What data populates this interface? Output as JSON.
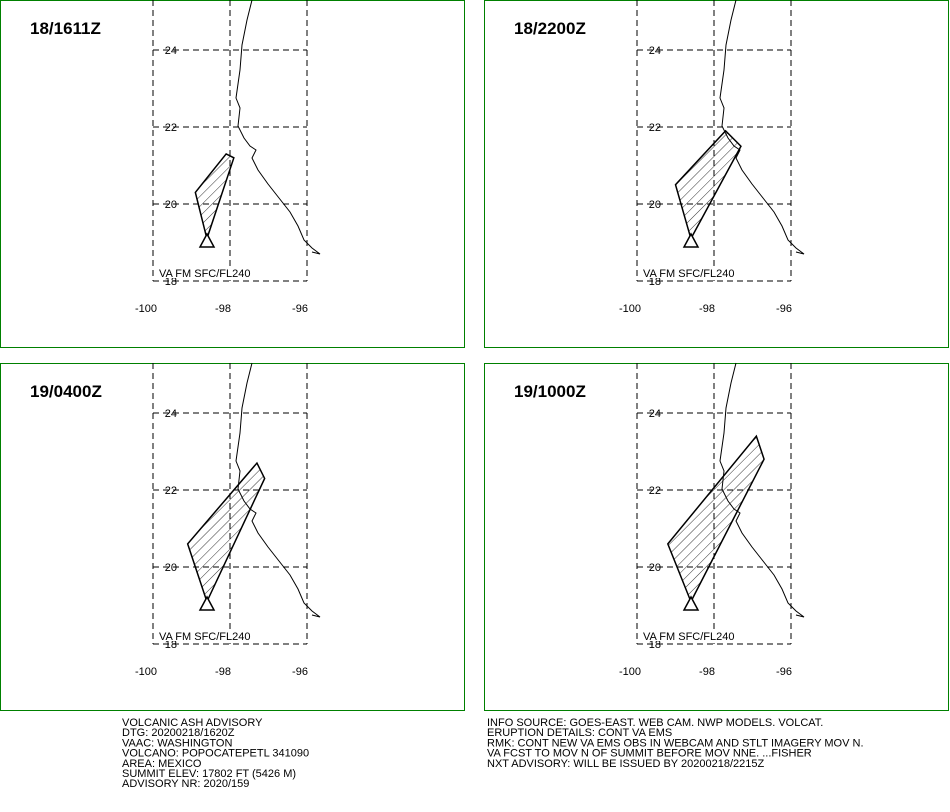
{
  "axes": {
    "lon_ticks": [
      -100,
      -98,
      -96
    ],
    "lat_ticks": [
      24,
      22,
      20,
      18
    ]
  },
  "panels": [
    {
      "time": "18/1611Z",
      "label": "VA FM SFC/FL240",
      "ash_area": [
        [
          -98.6,
          19.1
        ],
        [
          -98.9,
          20.3
        ],
        [
          -98.1,
          21.3
        ],
        [
          -97.9,
          21.2
        ]
      ]
    },
    {
      "time": "18/2200Z",
      "label": "VA FM SFC/FL240",
      "ash_area": [
        [
          -98.6,
          19.1
        ],
        [
          -99.0,
          20.5
        ],
        [
          -97.7,
          21.9
        ],
        [
          -97.3,
          21.5
        ]
      ]
    },
    {
      "time": "19/0400Z",
      "label": "VA FM SFC/FL240",
      "ash_area": [
        [
          -98.6,
          19.1
        ],
        [
          -99.1,
          20.6
        ],
        [
          -97.3,
          22.7
        ],
        [
          -97.1,
          22.3
        ]
      ]
    },
    {
      "time": "19/1000Z",
      "label": "VA FM SFC/FL240",
      "ash_area": [
        [
          -98.6,
          19.1
        ],
        [
          -99.2,
          20.6
        ],
        [
          -96.9,
          23.4
        ],
        [
          -96.7,
          22.8
        ]
      ]
    }
  ],
  "advisory_left": [
    "VOLCANIC ASH ADVISORY",
    "DTG: 20200218/1620Z",
    "VAAC: WASHINGTON",
    "VOLCANO: POPOCATEPETL 341090",
    "AREA: MEXICO",
    "SUMMIT ELEV: 17802 FT (5426 M)",
    "ADVISORY NR: 2020/159"
  ],
  "advisory_right": [
    "INFO SOURCE: GOES-EAST. WEB CAM. NWP MODELS. VOLCAT.",
    "ERUPTION DETAILS: CONT VA EMS",
    "RMK: CONT NEW VA EMS OBS IN WEBCAM AND STLT IMAGERY MOV N.",
    "VA FCST TO MOV N OF SUMMIT BEFORE MOV NNE. ...FISHER",
    "NXT ADVISORY: WILL BE ISSUED BY 20200218/2215Z"
  ]
}
